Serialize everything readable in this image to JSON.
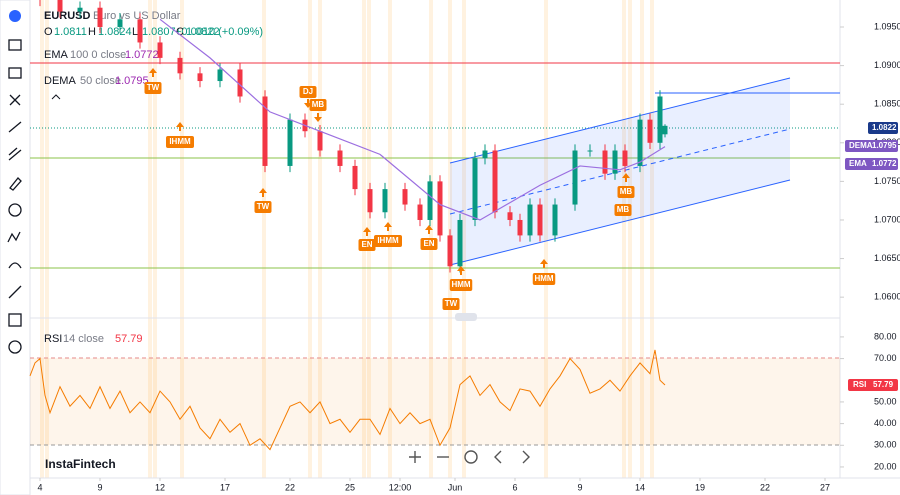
{
  "header": {
    "symbol": "EURUSD",
    "description": "Euro vs US Dollar",
    "ohlc": [
      {
        "key": "O",
        "value": "1.0811"
      },
      {
        "key": "H",
        "value": "1.0824"
      },
      {
        "key": "L",
        "value": "1.0807"
      },
      {
        "key": "C",
        "value": "1.0822"
      }
    ],
    "change": "+0.0010 (+0.09%)",
    "indicators": [
      {
        "name": "EMA",
        "params": "100 0 close",
        "value": "1.0772"
      },
      {
        "name": "DEMA",
        "params": "50 close",
        "value": "1.0795"
      }
    ]
  },
  "chart_data": {
    "type": "candlestick",
    "xlim": [
      0,
      162
    ],
    "ylim": [
      1.0573,
      1.0985
    ],
    "x": [
      2,
      6,
      10,
      14,
      18,
      22,
      26,
      30,
      34,
      38,
      42,
      47,
      52,
      55,
      58,
      62,
      65,
      68,
      71,
      75,
      78,
      80,
      82,
      84,
      86,
      89,
      91,
      93,
      96,
      98,
      100,
      102,
      105,
      109,
      112,
      115,
      117,
      119,
      122,
      124,
      126,
      127
    ],
    "open": [
      1.0995,
      1.0985,
      1.097,
      1.0975,
      1.095,
      1.096,
      1.093,
      1.091,
      1.089,
      1.088,
      1.0895,
      1.086,
      1.077,
      1.083,
      1.0815,
      1.079,
      1.077,
      1.074,
      1.071,
      1.074,
      1.072,
      1.07,
      1.075,
      1.068,
      1.064,
      1.07,
      1.078,
      1.079,
      1.071,
      1.07,
      1.068,
      1.072,
      1.068,
      1.072,
      1.079,
      1.079,
      1.076,
      1.079,
      1.077,
      1.083,
      1.08,
      1.0811
    ],
    "high": [
      1.1003,
      1.0993,
      1.0983,
      1.0983,
      1.0968,
      1.0968,
      1.0938,
      1.0918,
      1.0898,
      1.0903,
      1.0903,
      1.0868,
      1.0838,
      1.0838,
      1.0823,
      1.0798,
      1.0778,
      1.0748,
      1.0748,
      1.0748,
      1.0728,
      1.0758,
      1.0758,
      1.0688,
      1.0708,
      1.0788,
      1.0798,
      1.0798,
      1.0718,
      1.0708,
      1.0728,
      1.0728,
      1.0728,
      1.0798,
      1.0798,
      1.0798,
      1.0798,
      1.0798,
      1.0838,
      1.0838,
      1.0868,
      1.0824
    ],
    "low": [
      1.0977,
      1.0962,
      1.0962,
      1.0942,
      1.0942,
      1.0922,
      1.0902,
      1.0882,
      1.0872,
      1.0872,
      1.0852,
      1.0762,
      1.0762,
      1.0807,
      1.0782,
      1.0762,
      1.0732,
      1.0702,
      1.0702,
      1.0712,
      1.0692,
      1.0692,
      1.0672,
      1.0632,
      1.0632,
      1.0692,
      1.0772,
      1.0702,
      1.0692,
      1.0672,
      1.0672,
      1.0672,
      1.0672,
      1.0712,
      1.0782,
      1.0752,
      1.0752,
      1.0762,
      1.0762,
      1.0792,
      1.0792,
      1.0807
    ],
    "close": [
      1.0985,
      1.097,
      1.0975,
      1.095,
      1.096,
      1.093,
      1.091,
      1.089,
      1.088,
      1.0895,
      1.086,
      1.077,
      1.083,
      1.0815,
      1.079,
      1.077,
      1.074,
      1.071,
      1.074,
      1.072,
      1.07,
      1.075,
      1.068,
      1.064,
      1.07,
      1.078,
      1.079,
      1.071,
      1.07,
      1.068,
      1.072,
      1.068,
      1.072,
      1.079,
      1.079,
      1.076,
      1.079,
      1.077,
      1.083,
      1.08,
      1.086,
      1.0822
    ],
    "dema": {
      "name": "DEMA",
      "color": "#9c6fe0",
      "x": [
        26,
        36,
        48,
        60,
        70,
        82,
        90,
        102,
        110,
        118,
        122,
        127
      ],
      "values": [
        1.096,
        1.091,
        1.084,
        1.081,
        1.0785,
        1.072,
        1.07,
        1.0745,
        1.077,
        1.0765,
        1.0775,
        1.0795
      ]
    },
    "yticks": [
      {
        "value": 1.095,
        "label": "1.0950"
      },
      {
        "value": 1.09,
        "label": "1.0900"
      },
      {
        "value": 1.085,
        "label": "1.0850"
      },
      {
        "value": 1.08,
        "label": "1.0800"
      },
      {
        "value": 1.075,
        "label": "1.0750"
      },
      {
        "value": 1.07,
        "label": "1.0700"
      },
      {
        "value": 1.065,
        "label": "1.0650"
      },
      {
        "value": 1.06,
        "label": "1.0600"
      }
    ],
    "xticks": [
      {
        "value": 2,
        "label": "4"
      },
      {
        "value": 14,
        "label": "9"
      },
      {
        "value": 26,
        "label": "12"
      },
      {
        "value": 39,
        "label": "17"
      },
      {
        "value": 52,
        "label": "22"
      },
      {
        "value": 64,
        "label": "25"
      },
      {
        "value": 74,
        "label": "12:00"
      },
      {
        "value": 85,
        "label": "Jun"
      },
      {
        "value": 97,
        "label": "6"
      },
      {
        "value": 110,
        "label": "9"
      },
      {
        "value": 122,
        "label": "14"
      },
      {
        "value": 134,
        "label": "19"
      },
      {
        "value": 147,
        "label": "22"
      },
      {
        "value": 159,
        "label": "27"
      }
    ],
    "price_tags": [
      {
        "name": "",
        "value": "1.0822"
      },
      {
        "name": "DEMA",
        "value": "1.0795"
      },
      {
        "name": "EMA",
        "value": "1.0772"
      }
    ],
    "annotations": [
      "TW",
      "IHMM",
      "DJ",
      "MB",
      "TW",
      "EN",
      "IHMM",
      "EN",
      "HMM",
      "TW",
      "HMM",
      "MB",
      "MB"
    ]
  },
  "rsi": {
    "title": "RSI",
    "params": "14 close",
    "value": "57.79",
    "tag": "RSI",
    "color": "#f57c00",
    "ylim": [
      14.9,
      87.8
    ],
    "x": [
      0,
      1,
      2,
      3,
      4,
      6,
      8,
      10,
      12,
      14,
      16,
      18,
      20,
      22,
      24,
      26,
      28,
      30,
      32,
      34,
      36,
      38,
      40,
      42,
      44,
      46,
      48,
      50,
      52,
      54,
      56,
      58,
      60,
      62,
      64,
      66,
      68,
      70,
      72,
      74,
      76,
      78,
      80,
      82,
      84,
      86,
      88,
      90,
      92,
      94,
      96,
      98,
      100,
      102,
      104,
      106,
      108,
      110,
      112,
      114,
      116,
      118,
      120,
      122,
      124,
      125,
      126,
      127
    ],
    "values": [
      62,
      68,
      70,
      53,
      45,
      57,
      48,
      53,
      47,
      57,
      47,
      55,
      45,
      50,
      45,
      55,
      50,
      42,
      48,
      38,
      33,
      42,
      36,
      40,
      30,
      33,
      28,
      38,
      48,
      50,
      45,
      50,
      40,
      42,
      36,
      42,
      42,
      35,
      47,
      40,
      45,
      40,
      42,
      30,
      38,
      58,
      62,
      53,
      58,
      50,
      46,
      56,
      55,
      48,
      56,
      62,
      70,
      65,
      54,
      56,
      60,
      55,
      62,
      68,
      63,
      74,
      60,
      57.79
    ],
    "yticks": [
      {
        "value": 80,
        "label": "80.00"
      },
      {
        "value": 70,
        "label": "70.00"
      },
      {
        "value": 50,
        "label": "50.00"
      },
      {
        "value": 40,
        "label": "40.00"
      },
      {
        "value": 30,
        "label": "30.00"
      },
      {
        "value": 20,
        "label": "20.00"
      }
    ]
  },
  "footer": {
    "brand": "InstaFintech"
  }
}
